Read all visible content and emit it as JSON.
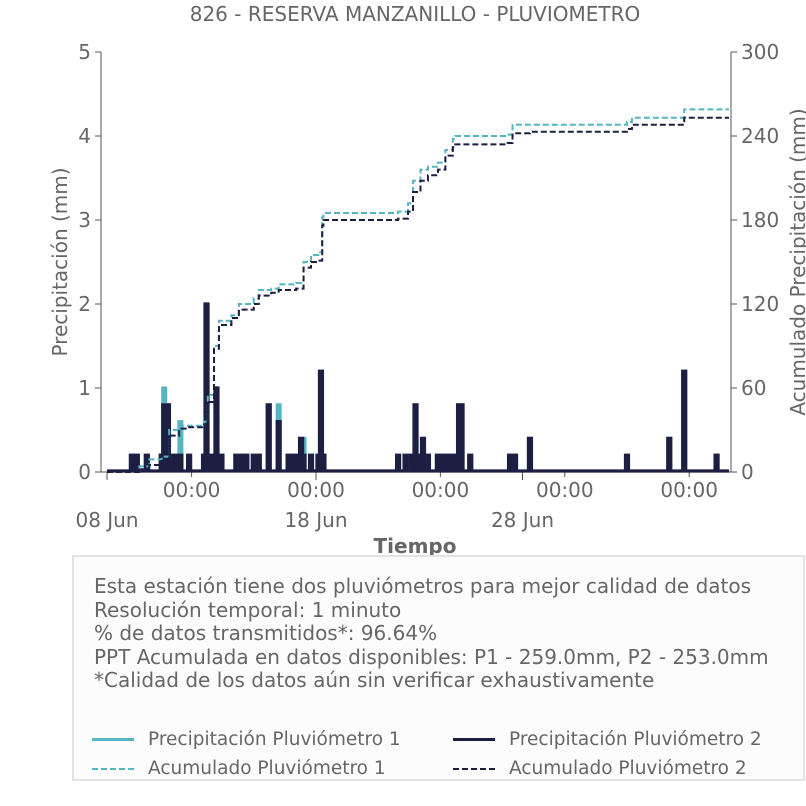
{
  "chart_data": {
    "type": "line",
    "title": "826 - RESERVA MANZANILLO - PLUVIOMETRO",
    "xlabel": "Tiempo",
    "ylabel_left": "Precipitación (mm)",
    "ylabel_right": "Acumulado Precipitación (mm)",
    "ylim_left": [
      0,
      5
    ],
    "ylim_right": [
      0,
      300
    ],
    "yticks_left": [
      "0",
      "1",
      "2",
      "3",
      "4",
      "5"
    ],
    "yticks_right": [
      "0",
      "60",
      "120",
      "180",
      "240",
      "300"
    ],
    "x_range_days": [
      0,
      25
    ],
    "xticks_minor": [
      {
        "day": 3.4,
        "label": "00:00"
      },
      {
        "day": 8.4,
        "label": "00:00"
      },
      {
        "day": 13.4,
        "label": "00:00"
      },
      {
        "day": 18.4,
        "label": "00:00"
      },
      {
        "day": 23.4,
        "label": "00:00"
      }
    ],
    "xticks_major": [
      {
        "day": 0.0,
        "label": "08 Jun"
      },
      {
        "day": 8.4,
        "label": "18 Jun"
      },
      {
        "day": 16.7,
        "label": "28 Jun"
      }
    ],
    "grid": false,
    "series": [
      {
        "name": "Precipitación Pluviómetro 1",
        "axis": "left",
        "style": "solid",
        "color": "#55b5c2",
        "points": [
          [
            1.0,
            0.2
          ],
          [
            1.2,
            0.2
          ],
          [
            1.6,
            0.2
          ],
          [
            2.2,
            0.2
          ],
          [
            2.3,
            1.0
          ],
          [
            2.45,
            0.8
          ],
          [
            2.7,
            0.2
          ],
          [
            2.95,
            0.6
          ],
          [
            3.3,
            0.2
          ],
          [
            3.9,
            0.2
          ],
          [
            4.0,
            2.0
          ],
          [
            4.2,
            0.2
          ],
          [
            4.4,
            0.9
          ],
          [
            4.6,
            0.2
          ],
          [
            5.2,
            0.2
          ],
          [
            5.4,
            0.2
          ],
          [
            5.6,
            0.2
          ],
          [
            5.9,
            0.2
          ],
          [
            6.1,
            0.2
          ],
          [
            6.5,
            0.8
          ],
          [
            6.9,
            0.8
          ],
          [
            7.3,
            0.2
          ],
          [
            7.5,
            0.2
          ],
          [
            7.7,
            0.2
          ],
          [
            7.8,
            0.4
          ],
          [
            7.9,
            0.4
          ],
          [
            8.2,
            0.2
          ],
          [
            8.5,
            0.2
          ],
          [
            8.6,
            1.2
          ],
          [
            8.7,
            0.2
          ],
          [
            11.7,
            0.2
          ],
          [
            12.0,
            0.2
          ],
          [
            12.25,
            0.2
          ],
          [
            12.4,
            0.8
          ],
          [
            12.6,
            0.2
          ],
          [
            12.7,
            0.4
          ],
          [
            12.9,
            0.2
          ],
          [
            13.3,
            0.2
          ],
          [
            13.5,
            0.2
          ],
          [
            13.7,
            0.2
          ],
          [
            13.9,
            0.2
          ],
          [
            14.0,
            0.2
          ],
          [
            14.15,
            0.8
          ],
          [
            14.25,
            0.8
          ],
          [
            14.6,
            0.2
          ],
          [
            16.2,
            0.2
          ],
          [
            16.4,
            0.2
          ],
          [
            17.0,
            0.4
          ],
          [
            20.9,
            0.2
          ],
          [
            22.6,
            0.4
          ],
          [
            23.2,
            1.2
          ],
          [
            24.5,
            0.2
          ]
        ]
      },
      {
        "name": "Precipitación Pluviómetro 2",
        "axis": "left",
        "style": "solid",
        "color": "#1c1f42",
        "points": [
          [
            1.0,
            0.2
          ],
          [
            1.2,
            0.2
          ],
          [
            1.6,
            0.2
          ],
          [
            2.2,
            0.2
          ],
          [
            2.3,
            0.8
          ],
          [
            2.45,
            0.8
          ],
          [
            2.7,
            0.2
          ],
          [
            2.95,
            0.2
          ],
          [
            3.3,
            0.2
          ],
          [
            3.9,
            0.2
          ],
          [
            4.0,
            2.0
          ],
          [
            4.2,
            0.2
          ],
          [
            4.4,
            1.0
          ],
          [
            4.6,
            0.2
          ],
          [
            5.2,
            0.2
          ],
          [
            5.4,
            0.2
          ],
          [
            5.6,
            0.2
          ],
          [
            5.9,
            0.2
          ],
          [
            6.1,
            0.2
          ],
          [
            6.5,
            0.8
          ],
          [
            6.9,
            0.6
          ],
          [
            7.3,
            0.2
          ],
          [
            7.5,
            0.2
          ],
          [
            7.7,
            0.2
          ],
          [
            7.8,
            0.4
          ],
          [
            7.9,
            0.2
          ],
          [
            8.2,
            0.2
          ],
          [
            8.5,
            0.2
          ],
          [
            8.6,
            1.2
          ],
          [
            8.7,
            0.2
          ],
          [
            11.7,
            0.2
          ],
          [
            12.0,
            0.2
          ],
          [
            12.25,
            0.2
          ],
          [
            12.4,
            0.8
          ],
          [
            12.6,
            0.2
          ],
          [
            12.7,
            0.4
          ],
          [
            12.9,
            0.2
          ],
          [
            13.3,
            0.2
          ],
          [
            13.5,
            0.2
          ],
          [
            13.7,
            0.2
          ],
          [
            13.9,
            0.2
          ],
          [
            14.0,
            0.2
          ],
          [
            14.15,
            0.8
          ],
          [
            14.25,
            0.8
          ],
          [
            14.6,
            0.2
          ],
          [
            16.2,
            0.2
          ],
          [
            16.4,
            0.2
          ],
          [
            17.0,
            0.4
          ],
          [
            20.9,
            0.2
          ],
          [
            22.6,
            0.4
          ],
          [
            23.2,
            1.2
          ],
          [
            24.5,
            0.2
          ]
        ]
      },
      {
        "name": "Acumulado Pluviómetro 1",
        "axis": "right",
        "style": "dashed",
        "color": "#55b5c2",
        "points": [
          [
            0,
            0
          ],
          [
            1.0,
            0
          ],
          [
            1.3,
            4
          ],
          [
            1.7,
            9
          ],
          [
            2.2,
            11
          ],
          [
            2.5,
            30
          ],
          [
            2.9,
            33
          ],
          [
            3.3,
            33
          ],
          [
            3.9,
            36
          ],
          [
            4.05,
            55
          ],
          [
            4.3,
            90
          ],
          [
            4.5,
            108
          ],
          [
            5.0,
            112
          ],
          [
            5.3,
            120
          ],
          [
            5.9,
            124
          ],
          [
            6.1,
            130
          ],
          [
            6.6,
            131
          ],
          [
            6.9,
            134
          ],
          [
            7.6,
            135
          ],
          [
            7.9,
            150
          ],
          [
            8.2,
            155
          ],
          [
            8.5,
            157
          ],
          [
            8.65,
            182
          ],
          [
            8.7,
            185
          ],
          [
            9.5,
            185
          ],
          [
            11.7,
            186
          ],
          [
            12.1,
            192
          ],
          [
            12.3,
            208
          ],
          [
            12.6,
            216
          ],
          [
            12.9,
            218
          ],
          [
            13.3,
            221
          ],
          [
            13.6,
            230
          ],
          [
            13.9,
            238
          ],
          [
            14.0,
            240
          ],
          [
            14.6,
            240
          ],
          [
            16.1,
            241
          ],
          [
            16.3,
            248
          ],
          [
            17.0,
            248
          ],
          [
            20.9,
            250
          ],
          [
            21.1,
            253
          ],
          [
            22.6,
            253
          ],
          [
            23.2,
            259
          ],
          [
            24.5,
            259
          ],
          [
            25.0,
            259
          ]
        ]
      },
      {
        "name": "Acumulado Pluviómetro 2",
        "axis": "right",
        "style": "dashed",
        "color": "#1c1f42",
        "points": [
          [
            0,
            0
          ],
          [
            1.0,
            0
          ],
          [
            1.3,
            2
          ],
          [
            1.7,
            5
          ],
          [
            2.2,
            8
          ],
          [
            2.5,
            26
          ],
          [
            2.9,
            31
          ],
          [
            3.3,
            32
          ],
          [
            3.9,
            34
          ],
          [
            4.05,
            50
          ],
          [
            4.3,
            88
          ],
          [
            4.5,
            105
          ],
          [
            5.0,
            110
          ],
          [
            5.3,
            116
          ],
          [
            5.9,
            120
          ],
          [
            6.1,
            126
          ],
          [
            6.6,
            128
          ],
          [
            6.9,
            130
          ],
          [
            7.6,
            131
          ],
          [
            7.9,
            146
          ],
          [
            8.2,
            150
          ],
          [
            8.5,
            151
          ],
          [
            8.65,
            176
          ],
          [
            8.7,
            180
          ],
          [
            9.5,
            180
          ],
          [
            11.7,
            181
          ],
          [
            12.1,
            186
          ],
          [
            12.3,
            200
          ],
          [
            12.6,
            208
          ],
          [
            12.9,
            212
          ],
          [
            13.3,
            216
          ],
          [
            13.6,
            226
          ],
          [
            13.9,
            232
          ],
          [
            14.0,
            234
          ],
          [
            14.6,
            234
          ],
          [
            16.1,
            235
          ],
          [
            16.3,
            242
          ],
          [
            17.0,
            243
          ],
          [
            20.9,
            245
          ],
          [
            21.1,
            248
          ],
          [
            22.6,
            248
          ],
          [
            23.2,
            253
          ],
          [
            24.5,
            253
          ],
          [
            25.0,
            253
          ]
        ]
      }
    ]
  },
  "info": {
    "lines": [
      "Esta estación tiene dos pluviómetros para mejor calidad de datos",
      "Resolución temporal: 1 minuto",
      "% de datos transmitidos*: 96.64%",
      "PPT Acumulada en datos disponibles: P1 - 259.0mm, P2 - 253.0mm",
      "*Calidad de los datos aún sin verificar exhaustivamente"
    ]
  },
  "legend": {
    "items": [
      {
        "label": "Precipitación Pluviómetro 1",
        "style": "solid",
        "color": "#55b5c2"
      },
      {
        "label": "Precipitación Pluviómetro 2",
        "style": "solid",
        "color": "#1c1f42"
      },
      {
        "label": "Acumulado Pluviómetro 1",
        "style": "dashed",
        "color": "#55b5c2"
      },
      {
        "label": "Acumulado Pluviómetro 2",
        "style": "dashed",
        "color": "#1c1f42"
      }
    ]
  },
  "colors": {
    "text": "#666666",
    "axis": "#555555",
    "series1": "#55b5c2",
    "series2": "#1c1f42"
  }
}
